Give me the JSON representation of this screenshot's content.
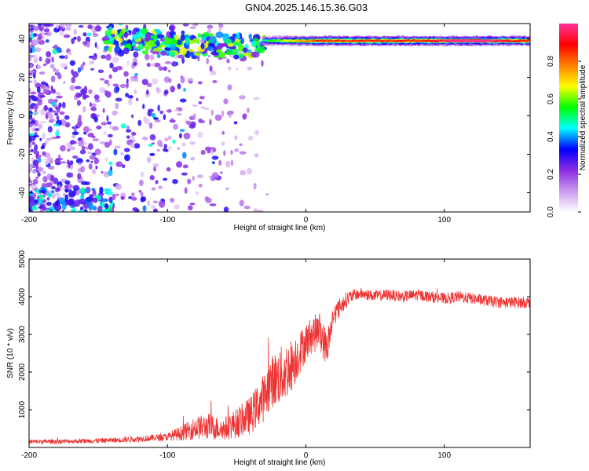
{
  "title": "GN04.2025.146.15.36.G03",
  "chart_data": [
    {
      "type": "heatmap",
      "xlabel": "Height of straight line (km)",
      "ylabel": "Frequency (Hz)",
      "xlim": [
        -200,
        162
      ],
      "ylim": [
        -50,
        48
      ],
      "xticks": [
        -200,
        -100,
        0,
        100
      ],
      "yticks": [
        -40,
        -20,
        0,
        20,
        40
      ],
      "colorbar": {
        "label": "Normalized spectral amplitude",
        "range": [
          0,
          1
        ],
        "ticks": [
          "0.0",
          "0.2",
          "0.4",
          "0.6",
          "0.8"
        ],
        "tick_values": [
          0,
          0.2,
          0.4,
          0.6,
          0.8
        ],
        "colormap": [
          "#ffffff",
          "#cc99ee",
          "#8a2be2",
          "#0000ff",
          "#00ffff",
          "#00ff00",
          "#ffff00",
          "#ff8000",
          "#ff0000",
          "#ff3399"
        ]
      },
      "features": [
        {
          "name": "horizontal-band",
          "freq_hz": 39,
          "x_from": -30,
          "x_to": 162,
          "amplitude": 0.9,
          "peak_x": 120
        },
        {
          "name": "rising-band",
          "x_from": -145,
          "x_to": -30,
          "freq_from": 40,
          "freq_to": 35,
          "amplitude": 0.45
        },
        {
          "name": "low-cluster",
          "x_from": -200,
          "x_to": -140,
          "freq_from": -50,
          "freq_to": -38,
          "amplitude": 0.3
        },
        {
          "name": "diffuse-noise",
          "x_from": -200,
          "x_to": -25,
          "amplitude": 0.12
        }
      ]
    },
    {
      "type": "line",
      "xlabel": "Height of straight line (km)",
      "ylabel": "SNR (10 * v/v)",
      "xlim": [
        -200,
        162
      ],
      "ylim": [
        0,
        5000
      ],
      "xticks": [
        -200,
        -100,
        0,
        100
      ],
      "yticks": [
        1000,
        2000,
        3000,
        4000,
        5000
      ],
      "color": "#ee3333",
      "series": [
        {
          "name": "SNR",
          "x": [
            -200,
            -180,
            -160,
            -140,
            -120,
            -100,
            -90,
            -80,
            -70,
            -60,
            -50,
            -40,
            -30,
            -25,
            -20,
            -15,
            -10,
            -5,
            0,
            5,
            10,
            15,
            20,
            25,
            30,
            35,
            40,
            50,
            60,
            70,
            80,
            90,
            100,
            110,
            120,
            130,
            140,
            150,
            162
          ],
          "values": [
            150,
            160,
            170,
            190,
            230,
            280,
            380,
            520,
            560,
            480,
            650,
            850,
            1350,
            1750,
            1850,
            2000,
            2200,
            2500,
            2800,
            3000,
            3100,
            2600,
            3500,
            3750,
            3950,
            4050,
            4080,
            4020,
            4050,
            4000,
            4050,
            4000,
            3950,
            4000,
            3950,
            3900,
            3850,
            3850,
            3850
          ],
          "noise": [
            60,
            60,
            60,
            70,
            80,
            100,
            200,
            300,
            350,
            300,
            400,
            500,
            650,
            700,
            750,
            800,
            700,
            600,
            500,
            500,
            500,
            500,
            300,
            250,
            200,
            150,
            150,
            150,
            150,
            150,
            150,
            150,
            150,
            150,
            150,
            150,
            150,
            150,
            150
          ]
        }
      ]
    }
  ]
}
